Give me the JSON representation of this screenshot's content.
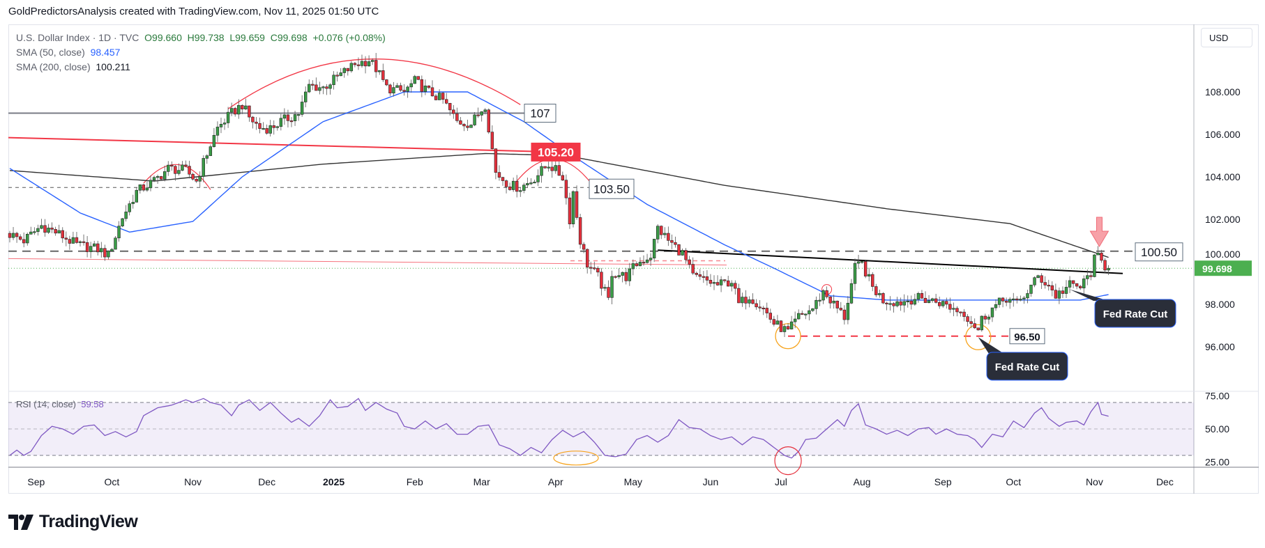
{
  "header": {
    "caption": "GoldPredictorsAnalysis created with TradingView.com, Nov 11, 2025 01:50 UTC"
  },
  "legend": {
    "symbol": "U.S. Dollar Index · 1D · TVC",
    "open": "O99.660",
    "high": "H99.738",
    "low": "L99.659",
    "close": "C99.698",
    "change": "+0.076 (+0.08%)",
    "sma50_label": "SMA (50, close)",
    "sma50_value": "98.457",
    "sma200_label": "SMA (200, close)",
    "sma200_value": "100.211",
    "rsi_label": "RSI (14, close)",
    "rsi_value": "59.58"
  },
  "price_axis": {
    "currency": "USD",
    "ticks": [
      "108.000",
      "106.000",
      "104.000",
      "102.000",
      "100.000",
      "98.000",
      "96.000"
    ],
    "last_price": "99.698"
  },
  "rsi_axis": {
    "ticks": [
      "75.00",
      "50.00",
      "25.00"
    ]
  },
  "time_axis": {
    "labels": [
      "Sep",
      "Oct",
      "Nov",
      "Dec",
      "2025",
      "Feb",
      "Mar",
      "Apr",
      "May",
      "Jun",
      "Jul",
      "Aug",
      "Sep",
      "Oct",
      "Nov",
      "Dec"
    ]
  },
  "annotations": {
    "level_107": "107",
    "level_105_20": "105.20",
    "level_103_50": "103.50",
    "level_100_50": "100.50",
    "level_96_50": "96.50",
    "fed_cut_1": "Fed Rate Cut",
    "fed_cut_2": "Fed Rate Cut"
  },
  "brand": {
    "name": "TradingView"
  },
  "colors": {
    "up": "#3a9c47",
    "down": "#e5303c",
    "sma50": "#2962ff",
    "sma200": "#333333",
    "rsi": "#7e57c2",
    "last": "#4caf50"
  },
  "chart_data": {
    "type": "candlestick",
    "title": "U.S. Dollar Index · 1D · TVC",
    "ylim": [
      95,
      110.5
    ],
    "rsi_ylim": [
      20,
      78
    ],
    "note": "approximate daily closes read from chart, given as [bar_index, close] key points",
    "key_closes": [
      [
        0,
        101.3
      ],
      [
        4,
        101.0
      ],
      [
        9,
        101.7
      ],
      [
        13,
        101.4
      ],
      [
        19,
        100.8
      ],
      [
        25,
        100.6
      ],
      [
        28,
        100.3
      ],
      [
        32,
        102.1
      ],
      [
        36,
        103.3
      ],
      [
        41,
        103.8
      ],
      [
        45,
        104.4
      ],
      [
        50,
        104.3
      ],
      [
        53,
        103.8
      ],
      [
        56,
        105.1
      ],
      [
        59,
        106.3
      ],
      [
        63,
        107.0
      ],
      [
        66,
        107.4
      ],
      [
        68,
        106.8
      ],
      [
        71,
        106.3
      ],
      [
        74,
        106.3
      ],
      [
        77,
        106.6
      ],
      [
        82,
        107.0
      ],
      [
        85,
        108.3
      ],
      [
        89,
        108.2
      ],
      [
        93,
        108.7
      ],
      [
        98,
        109.3
      ],
      [
        102,
        109.5
      ],
      [
        104,
        109.1
      ],
      [
        107,
        108.2
      ],
      [
        112,
        108.0
      ],
      [
        115,
        108.5
      ],
      [
        119,
        108.0
      ],
      [
        123,
        107.6
      ],
      [
        127,
        106.6
      ],
      [
        131,
        106.5
      ],
      [
        135,
        107.4
      ],
      [
        137,
        105.3
      ],
      [
        138,
        104.2
      ],
      [
        142,
        103.6
      ],
      [
        145,
        103.5
      ],
      [
        148,
        103.8
      ],
      [
        153,
        104.6
      ],
      [
        157,
        104.0
      ],
      [
        159,
        102.0
      ],
      [
        160,
        103.3
      ],
      [
        162,
        101.0
      ],
      [
        164,
        99.9
      ],
      [
        167,
        99.3
      ],
      [
        170,
        98.2
      ],
      [
        171,
        99.5
      ],
      [
        175,
        99.3
      ],
      [
        178,
        99.9
      ],
      [
        182,
        100.3
      ],
      [
        184,
        101.6
      ],
      [
        187,
        101.0
      ],
      [
        191,
        100.4
      ],
      [
        194,
        99.3
      ],
      [
        198,
        99.1
      ],
      [
        201,
        98.9
      ],
      [
        205,
        99.1
      ],
      [
        207,
        98.0
      ],
      [
        210,
        98.4
      ],
      [
        214,
        97.8
      ],
      [
        217,
        97.1
      ],
      [
        221,
        96.7
      ],
      [
        224,
        97.4
      ],
      [
        228,
        97.8
      ],
      [
        231,
        98.6
      ],
      [
        233,
        98.2
      ],
      [
        237,
        97.4
      ],
      [
        240,
        99.7
      ],
      [
        242,
        99.9
      ],
      [
        245,
        98.8
      ],
      [
        248,
        98.2
      ],
      [
        253,
        98.1
      ],
      [
        257,
        98.3
      ],
      [
        261,
        98.2
      ],
      [
        264,
        98.1
      ],
      [
        268,
        97.8
      ],
      [
        271,
        97.6
      ],
      [
        275,
        96.8
      ],
      [
        276,
        97.3
      ],
      [
        279,
        97.8
      ],
      [
        283,
        98.3
      ],
      [
        286,
        98.0
      ],
      [
        289,
        98.6
      ],
      [
        292,
        99.3
      ],
      [
        295,
        98.9
      ],
      [
        297,
        98.4
      ],
      [
        301,
        98.9
      ],
      [
        304,
        98.8
      ],
      [
        307,
        99.5
      ],
      [
        308,
        100.1
      ],
      [
        309,
        100.2
      ],
      [
        311,
        99.8
      ],
      [
        312,
        99.698
      ]
    ],
    "sma50": [
      [
        0,
        104.4
      ],
      [
        20,
        102.3
      ],
      [
        34,
        101.4
      ],
      [
        52,
        101.9
      ],
      [
        66,
        104.0
      ],
      [
        89,
        106.6
      ],
      [
        112,
        108.0
      ],
      [
        130,
        108.0
      ],
      [
        146,
        106.6
      ],
      [
        158,
        105.2
      ],
      [
        169,
        104.0
      ],
      [
        181,
        102.7
      ],
      [
        203,
        100.8
      ],
      [
        217,
        99.7
      ],
      [
        233,
        98.4
      ],
      [
        249,
        98.2
      ],
      [
        284,
        98.2
      ],
      [
        304,
        98.2
      ],
      [
        312,
        98.457
      ]
    ],
    "sma200": [
      [
        0,
        104.3
      ],
      [
        41,
        103.8
      ],
      [
        89,
        104.6
      ],
      [
        135,
        105.1
      ],
      [
        158,
        105.0
      ],
      [
        203,
        103.6
      ],
      [
        249,
        102.5
      ],
      [
        284,
        101.8
      ],
      [
        312,
        100.211
      ]
    ],
    "rsi": [
      [
        0,
        30
      ],
      [
        2,
        34
      ],
      [
        4,
        30
      ],
      [
        6,
        33
      ],
      [
        9,
        45
      ],
      [
        12,
        52
      ],
      [
        15,
        50
      ],
      [
        18,
        46
      ],
      [
        21,
        52
      ],
      [
        24,
        53
      ],
      [
        27,
        45
      ],
      [
        30,
        48
      ],
      [
        33,
        44
      ],
      [
        36,
        48
      ],
      [
        38,
        60
      ],
      [
        42,
        66
      ],
      [
        46,
        68
      ],
      [
        50,
        72
      ],
      [
        52,
        70
      ],
      [
        55,
        73
      ],
      [
        57,
        70
      ],
      [
        60,
        68
      ],
      [
        63,
        60
      ],
      [
        65,
        68
      ],
      [
        68,
        72
      ],
      [
        71,
        64
      ],
      [
        74,
        70
      ],
      [
        77,
        62
      ],
      [
        80,
        55
      ],
      [
        82,
        58
      ],
      [
        85,
        52
      ],
      [
        88,
        60
      ],
      [
        91,
        72
      ],
      [
        93,
        66
      ],
      [
        96,
        67
      ],
      [
        99,
        73
      ],
      [
        101,
        64
      ],
      [
        104,
        70
      ],
      [
        107,
        65
      ],
      [
        110,
        62
      ],
      [
        112,
        52
      ],
      [
        115,
        50
      ],
      [
        118,
        56
      ],
      [
        121,
        50
      ],
      [
        124,
        54
      ],
      [
        127,
        46
      ],
      [
        130,
        46
      ],
      [
        133,
        52
      ],
      [
        136,
        53
      ],
      [
        139,
        38
      ],
      [
        142,
        35
      ],
      [
        145,
        30
      ],
      [
        148,
        36
      ],
      [
        151,
        32
      ],
      [
        154,
        42
      ],
      [
        157,
        49
      ],
      [
        160,
        44
      ],
      [
        163,
        48
      ],
      [
        166,
        40
      ],
      [
        169,
        30
      ],
      [
        172,
        29
      ],
      [
        175,
        31
      ],
      [
        178,
        42
      ],
      [
        181,
        45
      ],
      [
        184,
        40
      ],
      [
        187,
        45
      ],
      [
        190,
        57
      ],
      [
        193,
        51
      ],
      [
        196,
        50
      ],
      [
        199,
        45
      ],
      [
        202,
        42
      ],
      [
        205,
        44
      ],
      [
        208,
        38
      ],
      [
        211,
        44
      ],
      [
        214,
        42
      ],
      [
        217,
        36
      ],
      [
        220,
        30
      ],
      [
        222,
        28
      ],
      [
        224,
        33
      ],
      [
        226,
        42
      ],
      [
        229,
        43
      ],
      [
        232,
        50
      ],
      [
        235,
        57
      ],
      [
        237,
        52
      ],
      [
        239,
        64
      ],
      [
        241,
        69
      ],
      [
        243,
        53
      ],
      [
        246,
        50
      ],
      [
        249,
        46
      ],
      [
        252,
        49
      ],
      [
        255,
        45
      ],
      [
        258,
        50
      ],
      [
        261,
        51
      ],
      [
        263,
        46
      ],
      [
        266,
        50
      ],
      [
        269,
        46
      ],
      [
        272,
        45
      ],
      [
        274,
        42
      ],
      [
        276,
        36
      ],
      [
        279,
        46
      ],
      [
        282,
        44
      ],
      [
        285,
        56
      ],
      [
        288,
        51
      ],
      [
        291,
        62
      ],
      [
        293,
        66
      ],
      [
        295,
        58
      ],
      [
        298,
        52
      ],
      [
        300,
        55
      ],
      [
        303,
        56
      ],
      [
        305,
        53
      ],
      [
        307,
        63
      ],
      [
        309,
        70
      ],
      [
        310,
        61
      ],
      [
        312,
        59.58
      ]
    ],
    "levels": {
      "resistance_107": 107,
      "resistance_105_20": 105.2,
      "support_103_50": 103.5,
      "resistance_100_50": 100.5,
      "support_96_50": 96.5
    },
    "rsi_levels": [
      70,
      50,
      30
    ]
  }
}
